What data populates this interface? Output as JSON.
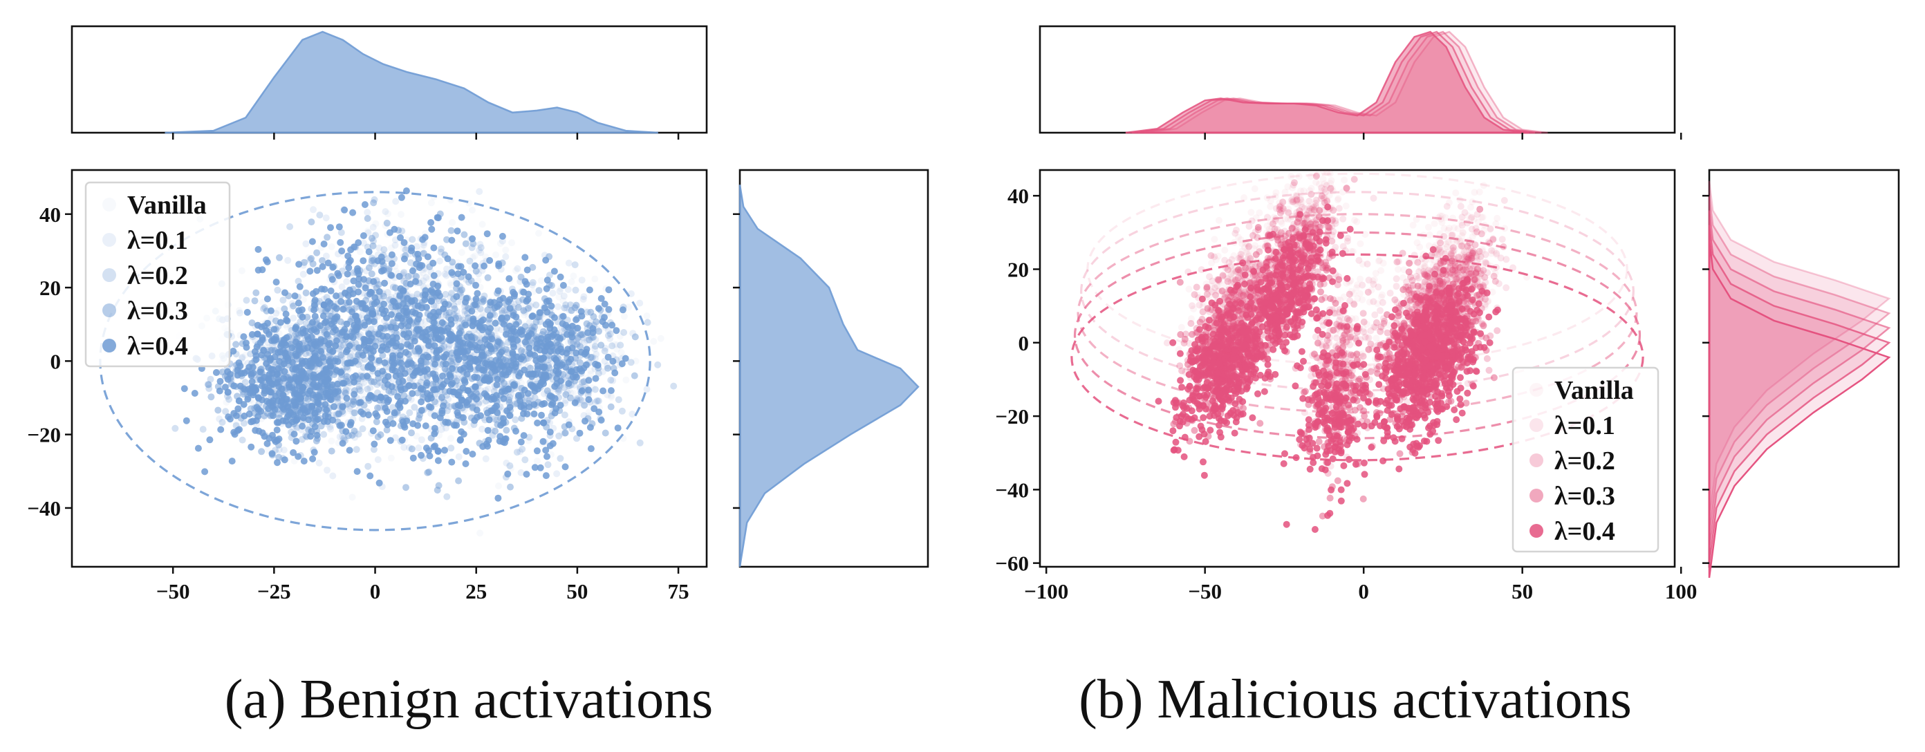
{
  "chart_data": [
    {
      "type": "scatter",
      "caption": "(a) Benign activations",
      "color": "#6f9bd4",
      "xlim": [
        -75,
        82
      ],
      "ylim": [
        -56,
        52
      ],
      "xticks": [
        -50,
        -25,
        0,
        25,
        50,
        75
      ],
      "yticks": [
        40,
        20,
        0,
        -20,
        -40
      ],
      "xtick_labels": [
        "−50",
        "−25",
        "0",
        "25",
        "50",
        "75"
      ],
      "ytick_labels": [
        "40",
        "20",
        "0",
        "−20",
        "−40"
      ],
      "legend": {
        "position": "upper left",
        "entries": [
          "Vanilla",
          "λ=0.1",
          "λ=0.2",
          "λ=0.3",
          "λ=0.4"
        ]
      },
      "series": [
        {
          "name": "Vanilla",
          "alpha": 0.06
        },
        {
          "name": "λ=0.1",
          "alpha": 0.15
        },
        {
          "name": "λ=0.2",
          "alpha": 0.3
        },
        {
          "name": "λ=0.3",
          "alpha": 0.5
        },
        {
          "name": "λ=0.4",
          "alpha": 0.85
        }
      ],
      "clusters": [
        {
          "cx": -22,
          "cy": -6,
          "sx": 9,
          "sy": 9,
          "n": 380
        },
        {
          "cx": 5,
          "cy": 8,
          "sx": 15,
          "sy": 14,
          "n": 520
        },
        {
          "cx": 28,
          "cy": -5,
          "sx": 12,
          "sy": 11,
          "n": 300
        },
        {
          "cx": 45,
          "cy": 2,
          "sx": 8,
          "sy": 10,
          "n": 140
        }
      ],
      "ellipses": [
        {
          "cx": 0,
          "cy": 0,
          "rx": 68,
          "ry": 46,
          "alpha": 0.9
        }
      ],
      "marginal_x": [
        [
          -52,
          0
        ],
        [
          -40,
          0.02
        ],
        [
          -32,
          0.15
        ],
        [
          -25,
          0.55
        ],
        [
          -18,
          0.92
        ],
        [
          -13,
          1.0
        ],
        [
          -8,
          0.92
        ],
        [
          -3,
          0.78
        ],
        [
          2,
          0.68
        ],
        [
          8,
          0.6
        ],
        [
          15,
          0.53
        ],
        [
          22,
          0.44
        ],
        [
          28,
          0.3
        ],
        [
          34,
          0.2
        ],
        [
          40,
          0.22
        ],
        [
          45,
          0.25
        ],
        [
          50,
          0.2
        ],
        [
          55,
          0.1
        ],
        [
          62,
          0.02
        ],
        [
          70,
          0
        ]
      ],
      "marginal_y": [
        [
          -56,
          0
        ],
        [
          -44,
          0.04
        ],
        [
          -36,
          0.14
        ],
        [
          -28,
          0.36
        ],
        [
          -20,
          0.62
        ],
        [
          -12,
          0.9
        ],
        [
          -7,
          1.0
        ],
        [
          -2,
          0.9
        ],
        [
          3,
          0.66
        ],
        [
          10,
          0.58
        ],
        [
          20,
          0.5
        ],
        [
          28,
          0.34
        ],
        [
          36,
          0.1
        ],
        [
          42,
          0.02
        ],
        [
          48,
          0
        ]
      ],
      "marginal_x_ticks": [
        -50,
        -25,
        0,
        25,
        50,
        75
      ]
    },
    {
      "type": "scatter",
      "caption": "(b) Malicious activations",
      "color": "#e4517e",
      "xlim": [
        -102,
        98
      ],
      "ylim": [
        -61,
        47
      ],
      "xticks": [
        -100,
        -50,
        0,
        50,
        100
      ],
      "yticks": [
        40,
        20,
        0,
        -20,
        -40,
        -60
      ],
      "xtick_labels": [
        "−100",
        "−50",
        "0",
        "50",
        "100"
      ],
      "ytick_labels": [
        "40",
        "20",
        "0",
        "−20",
        "−40",
        "−60"
      ],
      "legend": {
        "position": "lower right",
        "entries": [
          "Vanilla",
          "λ=0.1",
          "λ=0.2",
          "λ=0.3",
          "λ=0.4"
        ]
      },
      "series": [
        {
          "name": "Vanilla",
          "alpha": 0.06
        },
        {
          "name": "λ=0.1",
          "alpha": 0.15
        },
        {
          "name": "λ=0.2",
          "alpha": 0.3
        },
        {
          "name": "λ=0.3",
          "alpha": 0.5
        },
        {
          "name": "λ=0.4",
          "alpha": 0.85
        }
      ],
      "clusters": [
        {
          "cx": -45,
          "cy": -8,
          "sx": 6,
          "sy": 9,
          "n": 420,
          "slope": 0.9
        },
        {
          "cx": -25,
          "cy": 12,
          "sx": 6,
          "sy": 9,
          "n": 320,
          "slope": 1.0
        },
        {
          "cx": -10,
          "cy": -20,
          "sx": 5,
          "sy": 11,
          "n": 200,
          "slope": 0.3
        },
        {
          "cx": 20,
          "cy": -5,
          "sx": 7,
          "sy": 10,
          "n": 650,
          "slope": 1.0
        }
      ],
      "ellipses": [
        {
          "cx": -2,
          "cy": 20,
          "rx": 85,
          "ry": 26,
          "alpha": 0.12
        },
        {
          "cx": -2,
          "cy": 14,
          "rx": 87,
          "ry": 27,
          "alpha": 0.25
        },
        {
          "cx": -2,
          "cy": 8,
          "rx": 88,
          "ry": 27,
          "alpha": 0.45
        },
        {
          "cx": -2,
          "cy": 2,
          "rx": 89,
          "ry": 28,
          "alpha": 0.65
        },
        {
          "cx": -2,
          "cy": -4,
          "rx": 90,
          "ry": 28,
          "alpha": 0.85
        }
      ],
      "marginal_x": [
        [
          -75,
          0
        ],
        [
          -65,
          0.04
        ],
        [
          -57,
          0.2
        ],
        [
          -50,
          0.32
        ],
        [
          -45,
          0.34
        ],
        [
          -38,
          0.3
        ],
        [
          -30,
          0.29
        ],
        [
          -22,
          0.29
        ],
        [
          -15,
          0.27
        ],
        [
          -8,
          0.2
        ],
        [
          -2,
          0.17
        ],
        [
          4,
          0.3
        ],
        [
          10,
          0.7
        ],
        [
          16,
          0.95
        ],
        [
          21,
          1.0
        ],
        [
          26,
          0.85
        ],
        [
          32,
          0.45
        ],
        [
          38,
          0.15
        ],
        [
          44,
          0.03
        ],
        [
          52,
          0
        ]
      ],
      "marginal_x_ticks": [
        -50,
        0,
        50,
        100
      ],
      "marginal_y_offsets": [
        12,
        8,
        4,
        0,
        -4
      ],
      "marginal_y": [
        [
          -60,
          0
        ],
        [
          -45,
          0.04
        ],
        [
          -35,
          0.14
        ],
        [
          -25,
          0.32
        ],
        [
          -15,
          0.58
        ],
        [
          -6,
          0.85
        ],
        [
          0,
          1.0
        ],
        [
          5,
          0.7
        ],
        [
          10,
          0.36
        ],
        [
          16,
          0.12
        ],
        [
          24,
          0.02
        ],
        [
          32,
          0
        ]
      ]
    }
  ]
}
